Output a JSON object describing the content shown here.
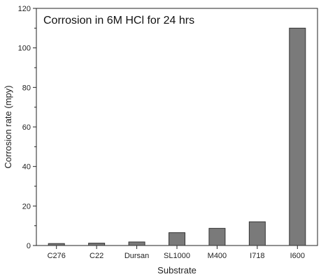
{
  "chart_data": {
    "type": "bar",
    "title": "Corrosion in 6M HCl for 24 hrs",
    "xlabel": "Substrate",
    "ylabel": "Corrosion rate (mpy)",
    "categories": [
      "C276",
      "C22",
      "Dursan",
      "SL1000",
      "M400",
      "I718",
      "I600"
    ],
    "values": [
      1.0,
      1.2,
      1.8,
      6.5,
      8.7,
      12.0,
      110.0
    ],
    "ylim": [
      0,
      120
    ],
    "yticks": [
      0,
      20,
      40,
      60,
      80,
      100,
      120
    ],
    "grid": false,
    "legend": "none",
    "bar_color": "#7a7a7a",
    "bar_edge_color": "#333333"
  }
}
